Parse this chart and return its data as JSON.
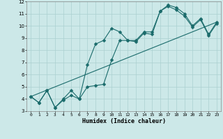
{
  "xlabel": "Humidex (Indice chaleur)",
  "xlim": [
    -0.5,
    23.5
  ],
  "ylim": [
    3,
    12
  ],
  "yticks": [
    3,
    4,
    5,
    6,
    7,
    8,
    9,
    10,
    11,
    12
  ],
  "xticks": [
    0,
    1,
    2,
    3,
    4,
    5,
    6,
    7,
    8,
    9,
    10,
    11,
    12,
    13,
    14,
    15,
    16,
    17,
    18,
    19,
    20,
    21,
    22,
    23
  ],
  "bg_color": "#cce8e8",
  "grid_color": "#b0d8d8",
  "line_color": "#1a6b6b",
  "line1_x": [
    0,
    1,
    2,
    3,
    4,
    5,
    6,
    7,
    8,
    9,
    10,
    11,
    12,
    13,
    14,
    15,
    16,
    17,
    18,
    19,
    20,
    21,
    22,
    23
  ],
  "line1_y": [
    4.2,
    3.7,
    4.7,
    3.3,
    4.0,
    4.7,
    4.0,
    6.8,
    8.5,
    8.8,
    9.8,
    9.5,
    8.8,
    8.8,
    9.5,
    9.5,
    11.2,
    11.7,
    11.5,
    11.0,
    10.0,
    10.6,
    9.3,
    10.3
  ],
  "line2_x": [
    0,
    1,
    2,
    3,
    4,
    5,
    6,
    7,
    8,
    9,
    10,
    11,
    12,
    13,
    14,
    15,
    16,
    17,
    18,
    19,
    20,
    21,
    22,
    23
  ],
  "line2_y": [
    4.2,
    3.7,
    4.7,
    3.3,
    3.9,
    4.3,
    4.0,
    5.0,
    5.1,
    5.2,
    7.2,
    8.8,
    8.8,
    8.7,
    9.4,
    9.3,
    11.2,
    11.6,
    11.3,
    10.8,
    9.9,
    10.5,
    9.2,
    10.2
  ],
  "line3_x": [
    0,
    23
  ],
  "line3_y": [
    4.2,
    10.3
  ]
}
